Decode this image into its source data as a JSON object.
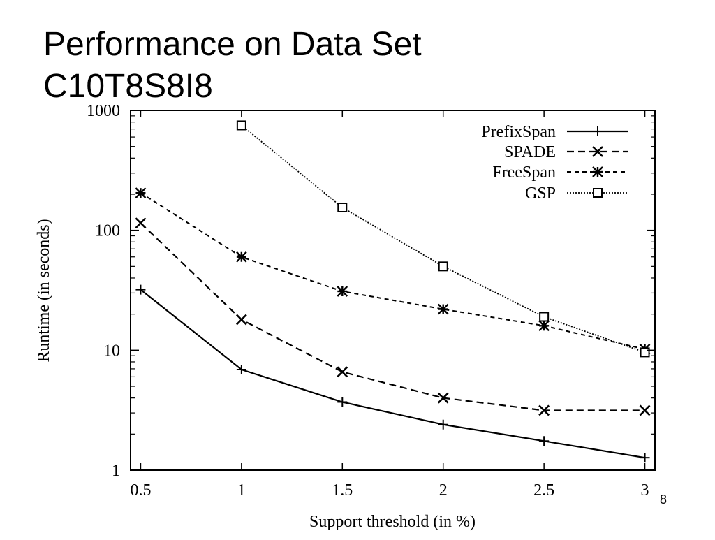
{
  "slide": {
    "title_line1": "Performance on Data Set",
    "title_line2": "C10T8S8I8",
    "page_number": "8"
  },
  "chart_data": {
    "type": "line",
    "title": "",
    "xlabel": "Support threshold (in %)",
    "ylabel": "Runtime (in seconds)",
    "x": [
      0.5,
      1,
      1.5,
      2,
      2.5,
      3
    ],
    "xlim": [
      0.45,
      3.05
    ],
    "ylim": [
      1,
      1000
    ],
    "yscale": "log",
    "xticks": [
      "0.5",
      "1",
      "1.5",
      "2",
      "2.5",
      "3"
    ],
    "yticks": [
      {
        "value": 1,
        "label": "1"
      },
      {
        "value": 10,
        "label": "10"
      },
      {
        "value": 100,
        "label": "100"
      },
      {
        "value": 1000,
        "label": "1000"
      }
    ],
    "legend_position": "top-right",
    "series": [
      {
        "name": "PrefixSpan",
        "marker": "plus",
        "dash": "solid",
        "x": [
          0.5,
          1,
          1.5,
          2,
          2.5,
          3
        ],
        "values": [
          32,
          6.9,
          3.7,
          2.4,
          1.75,
          1.27
        ]
      },
      {
        "name": "SPADE",
        "marker": "x",
        "dash": "dashed",
        "x": [
          0.5,
          1,
          1.5,
          2,
          2.5,
          3
        ],
        "values": [
          115,
          18,
          6.6,
          4.0,
          3.15,
          3.15
        ]
      },
      {
        "name": "FreeSpan",
        "marker": "star",
        "dash": "short-dashed",
        "x": [
          0.5,
          1,
          1.5,
          2,
          2.5,
          3
        ],
        "values": [
          205,
          60,
          31,
          22,
          16,
          10.2
        ]
      },
      {
        "name": "GSP",
        "marker": "square",
        "dash": "dotted",
        "x": [
          1,
          1.5,
          2,
          2.5,
          3
        ],
        "values": [
          750,
          155,
          50,
          19,
          9.6
        ]
      }
    ]
  }
}
